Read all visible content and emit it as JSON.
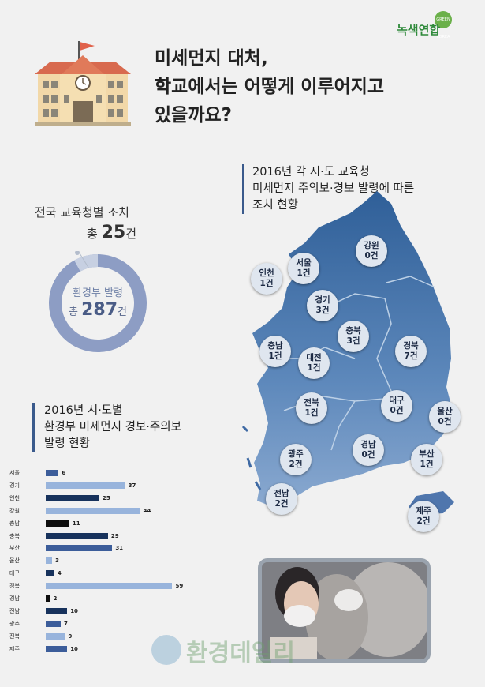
{
  "title": {
    "line1": "미세먼지 대처,",
    "line2": "학교에서는 어떻게 이루어지고",
    "line3": "있을까요?"
  },
  "logo": {
    "name": "녹색연합"
  },
  "map_caption": {
    "line1": "2016년 각 시·도 교육청",
    "line2": "미세먼지 주의보·경보 발령에 따른",
    "line3": "조치 현황"
  },
  "donut": {
    "outer_label": "전국 교육청별 조치",
    "outer_prefix": "총",
    "outer_value": "25",
    "outer_unit": "건",
    "inner_label": "환경부 발령",
    "inner_prefix": "총",
    "inner_value": "287",
    "inner_unit": "건",
    "colors": {
      "main": "#8d9dc4",
      "minor": "#c7d0e2",
      "dot": "#b4bdcc"
    }
  },
  "bar_caption": {
    "line1": "2016년 시·도별",
    "line2": "환경부 미세먼지 경보·주의보",
    "line3": "발령 현황"
  },
  "regions": [
    {
      "name": "강원",
      "count": "0건"
    },
    {
      "name": "서울",
      "count": "1건"
    },
    {
      "name": "인천",
      "count": "1건"
    },
    {
      "name": "경기",
      "count": "3건"
    },
    {
      "name": "충북",
      "count": "3건"
    },
    {
      "name": "충남",
      "count": "1건"
    },
    {
      "name": "대전",
      "count": "1건"
    },
    {
      "name": "경북",
      "count": "7건"
    },
    {
      "name": "전북",
      "count": "1건"
    },
    {
      "name": "대구",
      "count": "0건"
    },
    {
      "name": "울산",
      "count": "0건"
    },
    {
      "name": "광주",
      "count": "2건"
    },
    {
      "name": "경남",
      "count": "0건"
    },
    {
      "name": "부산",
      "count": "1건"
    },
    {
      "name": "전남",
      "count": "2건"
    },
    {
      "name": "제주",
      "count": "2건"
    }
  ],
  "chart_data": [
    {
      "type": "pie",
      "labels": [
        "전국 교육청별 조치",
        "환경부 발령"
      ],
      "values": [
        25,
        287
      ]
    },
    {
      "type": "bar",
      "orientation": "horizontal",
      "categories": [
        "서울",
        "경기",
        "인천",
        "강원",
        "충남",
        "충북",
        "부산",
        "울산",
        "대구",
        "경북",
        "경남",
        "전남",
        "광주",
        "전북",
        "제주"
      ],
      "values": [
        6,
        37,
        25,
        44,
        11,
        29,
        31,
        3,
        4,
        59,
        2,
        10,
        7,
        9,
        10
      ],
      "colors": [
        "#3c5d9a",
        "#98b4dc",
        "#17325c",
        "#98b4dc",
        "#0e0e0e",
        "#17325c",
        "#3c5d9a",
        "#98b4dc",
        "#17325c",
        "#98b4dc",
        "#0e0e0e",
        "#17325c",
        "#3c5d9a",
        "#98b4dc",
        "#3c5d9a"
      ]
    }
  ],
  "watermark": "환경데일리"
}
